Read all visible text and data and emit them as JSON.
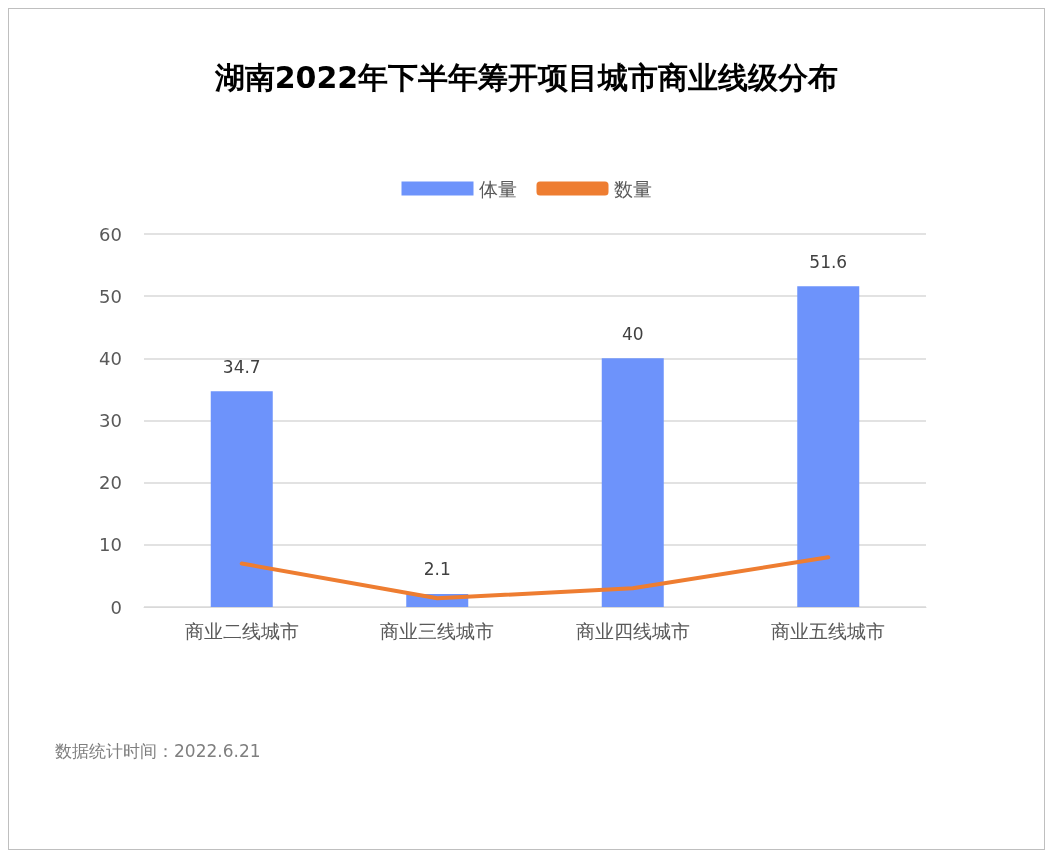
{
  "chart_data": {
    "type": "bar",
    "title": "湖南2022年下半年筹开项目城市商业线级分布",
    "categories": [
      "商业二线城市",
      "商业三线城市",
      "商业四线城市",
      "商业五线城市"
    ],
    "series": [
      {
        "name": "体量",
        "color": "#6d93fb",
        "values": [
          34.7,
          2.1,
          40,
          51.6
        ],
        "value_labels": [
          "34.7",
          "2.1",
          "40",
          "51.6"
        ]
      },
      {
        "name": "数量",
        "type": "line",
        "color": "#ee7d31",
        "values": [
          7,
          1.4,
          3,
          8
        ]
      }
    ],
    "ylim": [
      0,
      60
    ],
    "yticks": [
      0,
      10,
      20,
      30,
      40,
      50,
      60
    ],
    "grid": "y",
    "legend": "top",
    "marker": "none",
    "annotations": [
      "数据统计时间：2022.6.21"
    ]
  }
}
